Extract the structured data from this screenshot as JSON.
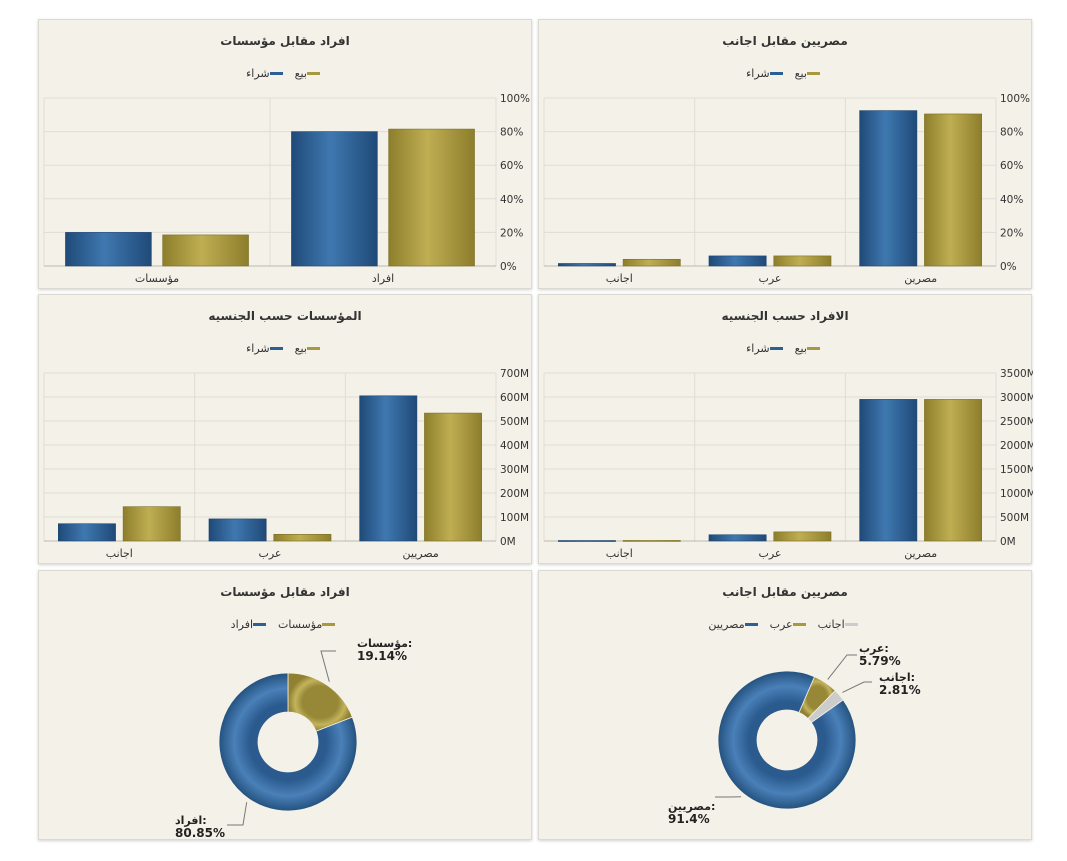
{
  "colors": {
    "blue": "#2c5f95",
    "gold": "#a8983e",
    "gray": "#cccccc",
    "grid": "#e0ddd4"
  },
  "legend_bar": [
    {
      "name": "بيع",
      "color": "#a8983e",
      "icon": "gold-line-icon"
    },
    {
      "name": "شراء",
      "color": "#2c5f95",
      "icon": "blue-line-icon"
    }
  ],
  "chart_data": [
    {
      "id": "p1",
      "type": "bar",
      "title": "افراد مقابل مؤسسات",
      "categories": [
        "مؤسسات",
        "افراد"
      ],
      "series": [
        {
          "name": "شراء",
          "values": [
            20,
            80
          ]
        },
        {
          "name": "بيع",
          "values": [
            18.5,
            81.5
          ]
        }
      ],
      "ylim": [
        0,
        100
      ],
      "ticks": [
        0,
        20,
        40,
        60,
        80,
        100
      ],
      "tick_labels": [
        "0%",
        "20%",
        "40%",
        "60%",
        "80%",
        "100%"
      ]
    },
    {
      "id": "p2",
      "type": "bar",
      "title": "مصريين مقابل اجانب",
      "categories": [
        "اجانب",
        "عرب",
        "مصرين"
      ],
      "series": [
        {
          "name": "شراء",
          "values": [
            1.5,
            6,
            92.5
          ]
        },
        {
          "name": "بيع",
          "values": [
            4,
            6,
            90.5
          ]
        }
      ],
      "ylim": [
        0,
        100
      ],
      "ticks": [
        0,
        20,
        40,
        60,
        80,
        100
      ],
      "tick_labels": [
        "0%",
        "20%",
        "40%",
        "60%",
        "80%",
        "100%"
      ]
    },
    {
      "id": "p3",
      "type": "bar",
      "title": "المؤسسات حسب الجنسيه",
      "categories": [
        "اجانب",
        "عرب",
        "مصريين"
      ],
      "series": [
        {
          "name": "شراء",
          "values": [
            72,
            92,
            605
          ]
        },
        {
          "name": "بيع",
          "values": [
            143,
            28,
            533
          ]
        }
      ],
      "ylim": [
        0,
        700
      ],
      "ticks": [
        0,
        100,
        200,
        300,
        400,
        500,
        600,
        700
      ],
      "tick_labels": [
        "0M",
        "100M",
        "200M",
        "300M",
        "400M",
        "500M",
        "600M",
        "700M"
      ]
    },
    {
      "id": "p4",
      "type": "bar",
      "title": "الافراد حسب الجنسيه",
      "categories": [
        "اجانب",
        "عرب",
        "مصرين"
      ],
      "series": [
        {
          "name": "شراء",
          "values": [
            10,
            130,
            2950
          ]
        },
        {
          "name": "بيع",
          "values": [
            12,
            190,
            2950
          ]
        }
      ],
      "ylim": [
        0,
        3500
      ],
      "ticks": [
        0,
        500,
        1000,
        1500,
        2000,
        2500,
        3000,
        3500
      ],
      "tick_labels": [
        "0M",
        "500M",
        "1000M",
        "1500M",
        "2000M",
        "2500M",
        "3000M",
        "3500M"
      ]
    },
    {
      "id": "p5",
      "type": "pie",
      "title": "افراد مقابل مؤسسات",
      "legend": [
        {
          "name": "مؤسسات",
          "color": "#a8983e"
        },
        {
          "name": "افراد",
          "color": "#2c5f95"
        }
      ],
      "slices": [
        {
          "name": "مؤسسات",
          "value": 19.14,
          "label": "مؤسسات:",
          "pct": "19.14%",
          "color": "#a8983e"
        },
        {
          "name": "افراد",
          "value": 80.85,
          "label": "افراد:",
          "pct": "80.85%",
          "color": "#2c5f95"
        }
      ]
    },
    {
      "id": "p6",
      "type": "pie",
      "title": "مصريين مقابل اجانب",
      "legend": [
        {
          "name": "اجانب",
          "color": "#cccccc"
        },
        {
          "name": "عرب",
          "color": "#a8983e"
        },
        {
          "name": "مصريين",
          "color": "#2c5f95"
        }
      ],
      "slices": [
        {
          "name": "عرب",
          "value": 5.79,
          "label": "عرب:",
          "pct": "5.79%",
          "color": "#a8983e"
        },
        {
          "name": "اجانب",
          "value": 2.81,
          "label": "اجانب:",
          "pct": "2.81%",
          "color": "#cccccc"
        },
        {
          "name": "مصريين",
          "value": 91.4,
          "label": "مصريين:",
          "pct": "91.4%",
          "color": "#2c5f95"
        }
      ]
    }
  ]
}
